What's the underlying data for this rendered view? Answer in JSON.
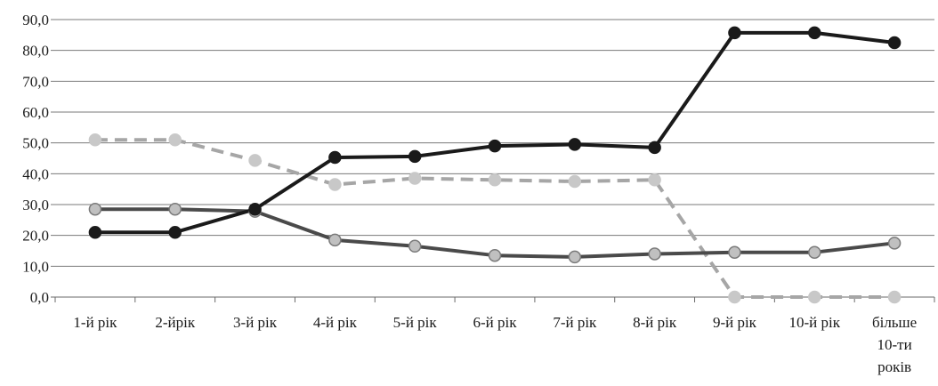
{
  "chart_data": {
    "type": "line",
    "title": "",
    "xlabel": "",
    "ylabel": "",
    "categories": [
      "1-й рік",
      "2-йрік",
      "3-й рік",
      "4-й рік",
      "5-й рік",
      "6-й рік",
      "7-й рік",
      "8-й рік",
      "9-й рік",
      "10-й рік",
      "більше 10-ти років"
    ],
    "category_lines": [
      [
        "1-й рік"
      ],
      [
        "2-йрік"
      ],
      [
        "3-й рік"
      ],
      [
        "4-й рік"
      ],
      [
        "5-й рік"
      ],
      [
        "6-й рік"
      ],
      [
        "7-й рік"
      ],
      [
        "8-й рік"
      ],
      [
        "9-й рік"
      ],
      [
        "10-й рік"
      ],
      [
        "більше",
        "10-ти",
        "років"
      ]
    ],
    "y_ticks": [
      "0,0",
      "10,0",
      "20,0",
      "30,0",
      "40,0",
      "50,0",
      "60,0",
      "70,0",
      "80,0",
      "90,0"
    ],
    "ylim": [
      0,
      90
    ],
    "grid": true,
    "legend": "none",
    "series": [
      {
        "values": [
          51.0,
          51.0,
          44.3,
          36.5,
          38.5,
          38.0,
          37.5,
          38.0,
          0.0,
          0.0,
          0.0
        ],
        "style": "dashed",
        "color": "#a6a6a6",
        "marker_fill": "#c8c8c8",
        "marker_stroke": "#c8c8c8"
      },
      {
        "values": [
          28.5,
          28.5,
          27.8,
          18.5,
          16.5,
          13.5,
          13.0,
          14.0,
          14.5,
          14.5,
          17.5
        ],
        "style": "solid",
        "color": "#4a4a4a",
        "marker_fill": "#c0c0c0",
        "marker_stroke": "#7a7a7a"
      },
      {
        "values": [
          21.0,
          21.0,
          28.5,
          45.3,
          45.6,
          49.0,
          49.5,
          48.5,
          85.7,
          85.7,
          82.5
        ],
        "style": "solid",
        "color": "#1a1a1a",
        "marker_fill": "#1a1a1a",
        "marker_stroke": "#1a1a1a"
      }
    ]
  }
}
